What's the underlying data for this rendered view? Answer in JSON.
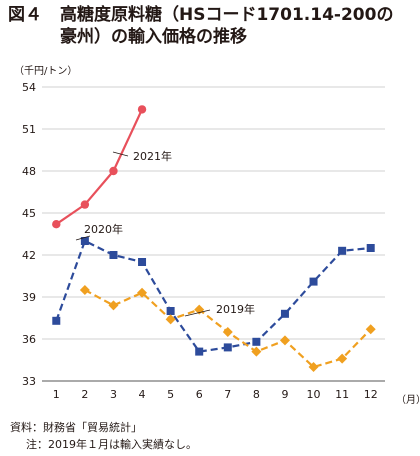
{
  "figure": {
    "label": "図４",
    "title_line1": "高糖度原料糖（HSコード1701.14-200の",
    "title_line2": "豪州）の輸入価格の推移"
  },
  "footer": {
    "source": "資料：財務省「貿易統計」",
    "note": "注：2019年１月は輸入実績なし。"
  },
  "chart_data": {
    "type": "line",
    "ylabel": "（千円/トン）",
    "xlabel": "（月）",
    "ylim": [
      33,
      54
    ],
    "yticks": [
      33,
      36,
      39,
      42,
      45,
      48,
      51,
      54
    ],
    "categories": [
      "1",
      "2",
      "3",
      "4",
      "5",
      "6",
      "7",
      "8",
      "9",
      "10",
      "11",
      "12"
    ],
    "grid": "horizontal",
    "series": [
      {
        "name": "2021年",
        "color": "#e8505b",
        "marker": "circle",
        "dash": "solid",
        "values": [
          44.2,
          45.6,
          48.0,
          52.4,
          null,
          null,
          null,
          null,
          null,
          null,
          null,
          null
        ]
      },
      {
        "name": "2020年",
        "color": "#2d4b9b",
        "marker": "square",
        "dash": "dashed",
        "values": [
          37.3,
          43.0,
          42.0,
          41.5,
          38.0,
          35.1,
          35.4,
          35.8,
          37.8,
          40.1,
          42.3,
          42.5
        ]
      },
      {
        "name": "2019年",
        "color": "#f0a020",
        "marker": "diamond",
        "dash": "dashed",
        "values": [
          null,
          39.5,
          38.4,
          39.3,
          37.4,
          38.1,
          36.5,
          35.1,
          35.9,
          34.0,
          34.6,
          36.7
        ]
      }
    ]
  }
}
